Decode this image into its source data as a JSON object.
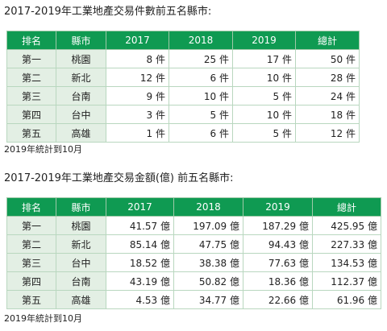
{
  "table1": {
    "title": "2017-2019年工業地產交易件數前五名縣市:",
    "headers": [
      "排名",
      "縣市",
      "2017",
      "2018",
      "2019",
      "總計"
    ],
    "rows": [
      [
        "第一",
        "桃園",
        "8 件",
        "25 件",
        "17 件",
        "50 件"
      ],
      [
        "第二",
        "新北",
        "12 件",
        "6 件",
        "10 件",
        "28 件"
      ],
      [
        "第三",
        "台南",
        "9 件",
        "10 件",
        "5 件",
        "24 件"
      ],
      [
        "第四",
        "台中",
        "3 件",
        "5 件",
        "10 件",
        "18 件"
      ],
      [
        "第五",
        "高雄",
        "1 件",
        "6 件",
        "5 件",
        "12 件"
      ]
    ],
    "note": "2019年統計到10月"
  },
  "table2": {
    "title": "2017-2019年工業地產交易金額(億) 前五名縣市:",
    "headers": [
      "排名",
      "縣市",
      "2017",
      "2018",
      "2019",
      "總計"
    ],
    "rows": [
      [
        "第一",
        "桃園",
        "41.57 億",
        "197.09 億",
        "187.29 億",
        "425.95 億"
      ],
      [
        "第二",
        "新北",
        "85.14 億",
        "47.75 億",
        "94.43 億",
        "227.33 億"
      ],
      [
        "第三",
        "台中",
        "18.52 億",
        "38.38 億",
        "77.63 億",
        "134.53 億"
      ],
      [
        "第四",
        "台南",
        "43.19 億",
        "50.82 億",
        "18.36 億",
        "112.37 億"
      ],
      [
        "第五",
        "高雄",
        "4.53 億",
        "34.77 億",
        "22.66 億",
        "61.96 億"
      ]
    ],
    "note": "2019年統計到10月"
  }
}
